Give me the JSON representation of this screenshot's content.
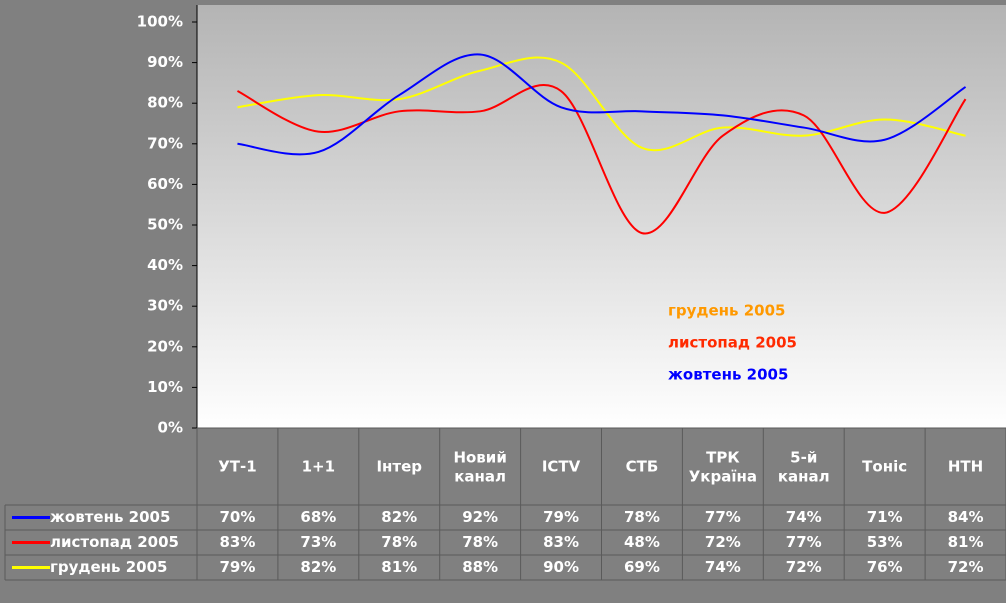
{
  "chart_data": {
    "type": "line",
    "categories": [
      "УТ-1",
      "1+1",
      "Інтер",
      "Новий канал",
      "ICTV",
      "СТБ",
      "ТРК Україна",
      "5-й канал",
      "Тоніс",
      "НТН"
    ],
    "series": [
      {
        "name": "жовтень 2005",
        "color": "#0000ff",
        "legend_color": "#0000ff",
        "values": [
          70,
          68,
          82,
          92,
          79,
          78,
          77,
          74,
          71,
          84
        ],
        "value_labels": [
          "70%",
          "68%",
          "82%",
          "92%",
          "79%",
          "78%",
          "77%",
          "74%",
          "71%",
          "84%"
        ]
      },
      {
        "name": "листопад 2005",
        "color": "#ff0000",
        "legend_color": "#ff2a00",
        "values": [
          83,
          73,
          78,
          78,
          83,
          48,
          72,
          77,
          53,
          81
        ],
        "value_labels": [
          "83%",
          "73%",
          "78%",
          "78%",
          "83%",
          "48%",
          "72%",
          "77%",
          "53%",
          "81%"
        ]
      },
      {
        "name": "грудень 2005",
        "color": "#ffff00",
        "legend_color": "#ff9900",
        "values": [
          79,
          82,
          81,
          88,
          90,
          69,
          74,
          72,
          76,
          72
        ],
        "value_labels": [
          "79%",
          "82%",
          "81%",
          "88%",
          "90%",
          "69%",
          "74%",
          "72%",
          "76%",
          "72%"
        ]
      }
    ],
    "ylim": [
      0,
      100
    ],
    "yticks": [
      {
        "value": 0,
        "label": "0%"
      },
      {
        "value": 10,
        "label": "10%"
      },
      {
        "value": 20,
        "label": "20%"
      },
      {
        "value": 30,
        "label": "30%"
      },
      {
        "value": 40,
        "label": "40%"
      },
      {
        "value": 50,
        "label": "50%"
      },
      {
        "value": 60,
        "label": "60%"
      },
      {
        "value": 70,
        "label": "70%"
      },
      {
        "value": 80,
        "label": "80%"
      },
      {
        "value": 90,
        "label": "90%"
      },
      {
        "value": 100,
        "label": "100%"
      }
    ],
    "grid": false
  }
}
